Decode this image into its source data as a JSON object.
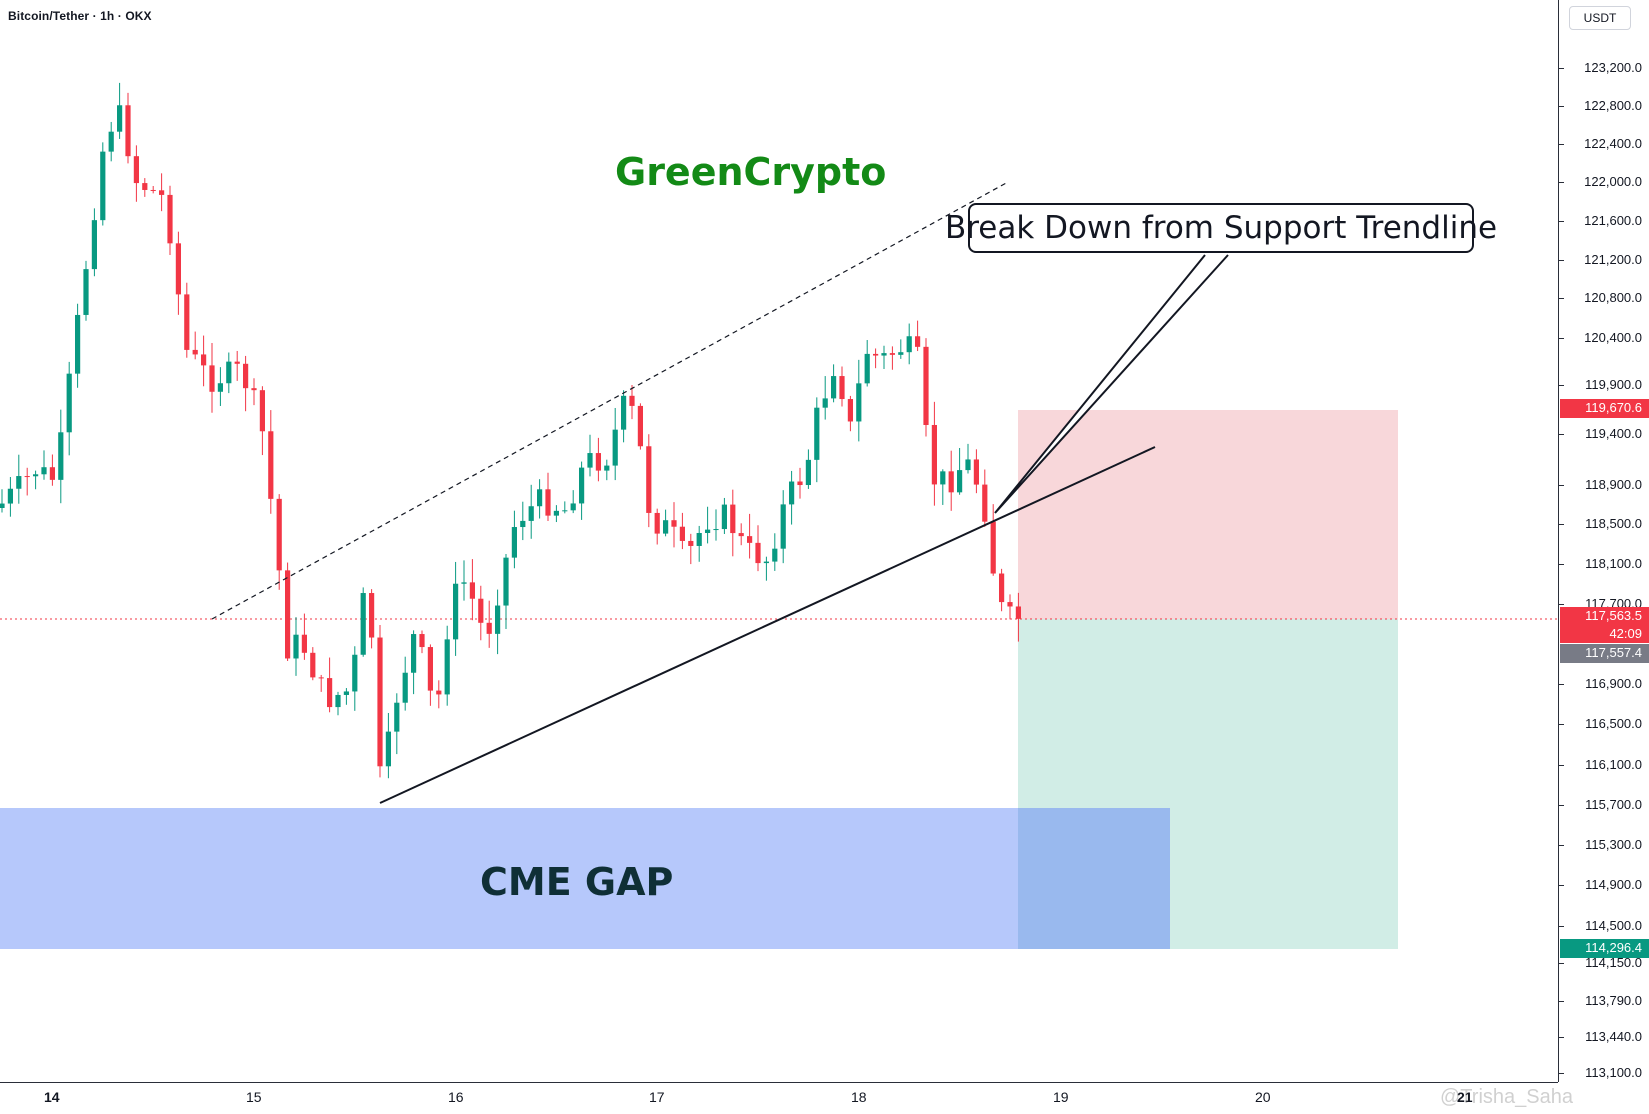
{
  "header": {
    "symbol_title": "Bitcoin/Tether · 1h · OKX"
  },
  "annotations": {
    "brand": "GreenCrypto",
    "callout": "Break Down from Support Trendline",
    "cme_gap": "CME GAP"
  },
  "price_axis": {
    "currency": "USDT",
    "ticks": [
      "123,200.0",
      "122,800.0",
      "122,400.0",
      "122,000.0",
      "121,600.0",
      "121,200.0",
      "120,800.0",
      "120,400.0",
      "119,900.0",
      "119,400.0",
      "118,900.0",
      "118,500.0",
      "118,100.0",
      "117,700.0",
      "116,900.0",
      "116,500.0",
      "116,100.0",
      "115,700.0",
      "115,300.0",
      "114,900.0",
      "114,500.0",
      "114,150.0",
      "113,790.0",
      "113,440.0",
      "113,100.0"
    ],
    "stop_badge": "119,670.6",
    "last_price_badge": "117,563.5",
    "countdown": "42:09",
    "prev_close_badge": "117,557.4",
    "target_badge": "114,296.4",
    "colors": {
      "stop": "#f23645",
      "last": "#f23645",
      "prev": "#787b86",
      "target": "#089981"
    }
  },
  "time_axis": {
    "labels": [
      "14",
      "15",
      "16",
      "17",
      "18",
      "19",
      "20",
      "21"
    ],
    "bold": [
      "14",
      "21"
    ]
  },
  "watermark": "@Trisha_Saha",
  "colors": {
    "up": "#089981",
    "down": "#f23645",
    "brand": "#138a16",
    "stop_zone": "#f8d7da",
    "target_zone": "#d1ede6",
    "cme_zone": "#b6c8fb"
  }
}
